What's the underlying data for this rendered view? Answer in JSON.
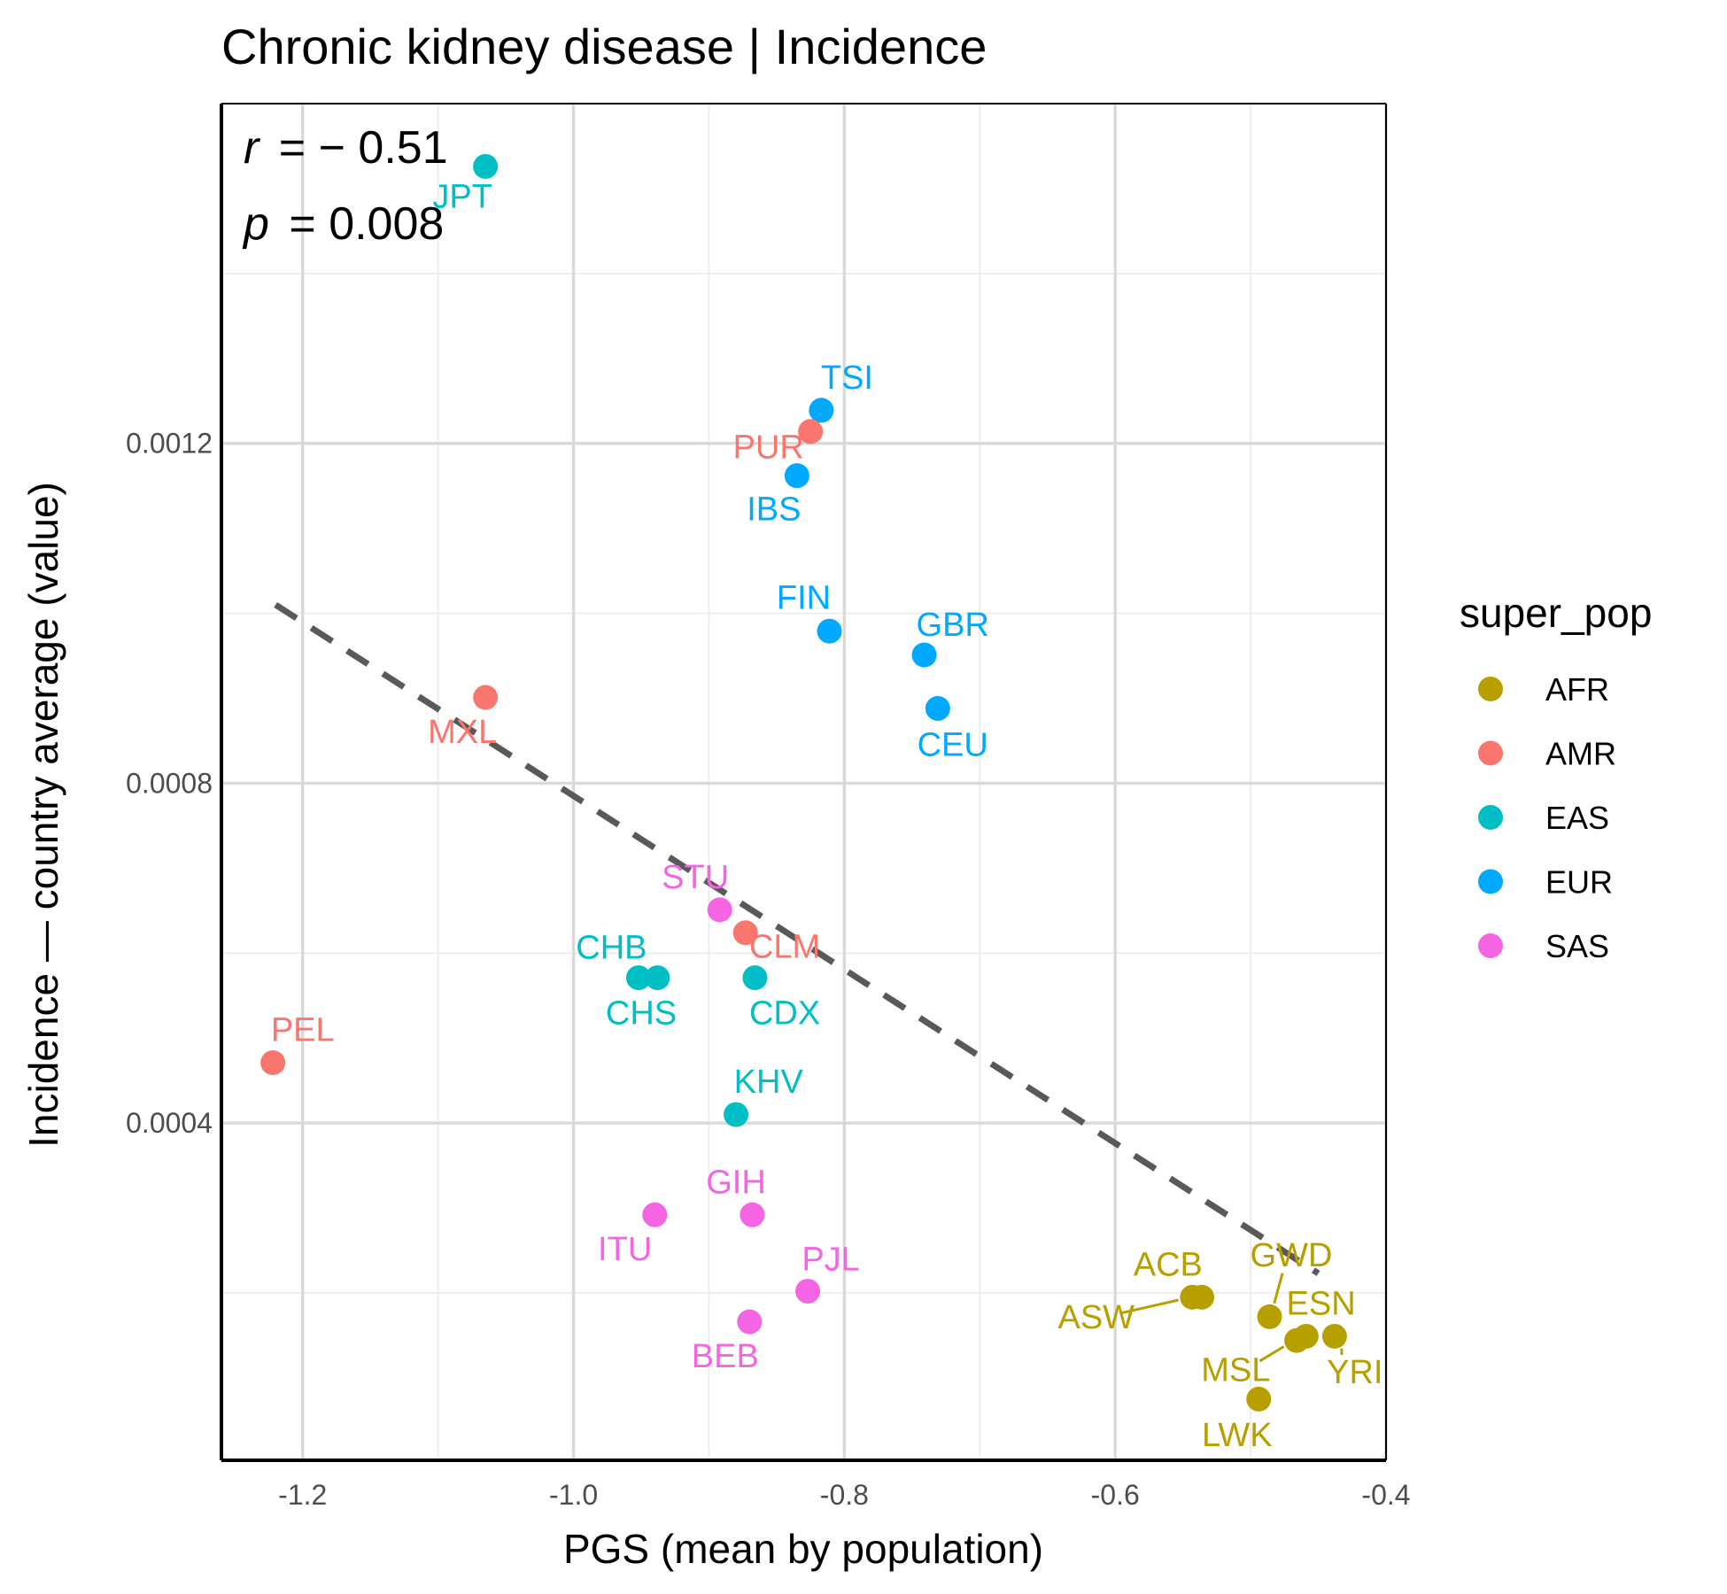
{
  "chart_data": {
    "type": "scatter",
    "title": "Chronic kidney disease | Incidence",
    "xlabel": "PGS (mean by population)",
    "ylabel": "Incidence — country average (value)",
    "xlim": [
      -1.26,
      -0.4
    ],
    "ylim": [
      3e-06,
      0.0016
    ],
    "x_ticks": [
      -1.2,
      -1.0,
      -0.8,
      -0.6,
      -0.4
    ],
    "x_tick_labels": [
      "-1.2",
      "-1.0",
      "-0.8",
      "-0.6",
      "-0.4"
    ],
    "y_ticks": [
      0.0004,
      0.0008,
      0.0012
    ],
    "y_tick_labels": [
      "0.0004",
      "0.0008",
      "0.0012"
    ],
    "grid": true,
    "stats": {
      "r_symbol": "r",
      "r_value": "= − 0.51",
      "p_symbol": "p",
      "p_value": "= 0.008"
    },
    "trend_line": {
      "style": "dashed",
      "color": "#595959",
      "x": [
        -1.22,
        -0.45
      ],
      "y": [
        0.00101,
        0.000223
      ]
    },
    "legend": {
      "title": "super_pop",
      "position": "right",
      "entries": [
        {
          "name": "AFR",
          "color": "#B79F00"
        },
        {
          "name": "AMR",
          "color": "#F8766D"
        },
        {
          "name": "EAS",
          "color": "#00BFC4"
        },
        {
          "name": "EUR",
          "color": "#00A9FF"
        },
        {
          "name": "SAS",
          "color": "#F564E3"
        }
      ]
    },
    "points": [
      {
        "label": "JPT",
        "super_pop": "EAS",
        "x": -1.065,
        "y": 0.001526,
        "lx": -1.082,
        "ly": 0.001491
      },
      {
        "label": "TSI",
        "super_pop": "EUR",
        "x": -0.817,
        "y": 0.001239,
        "lx": -0.798,
        "ly": 0.001278
      },
      {
        "label": "PUR",
        "super_pop": "AMR",
        "x": -0.825,
        "y": 0.001214,
        "lx": -0.856,
        "ly": 0.001196
      },
      {
        "label": "IBS",
        "super_pop": "EUR",
        "x": -0.835,
        "y": 0.001162,
        "lx": -0.852,
        "ly": 0.001123
      },
      {
        "label": "FIN",
        "super_pop": "EUR",
        "x": -0.811,
        "y": 0.000979,
        "lx": -0.83,
        "ly": 0.001019
      },
      {
        "label": "GBR",
        "super_pop": "EUR",
        "x": -0.741,
        "y": 0.000951,
        "lx": -0.72,
        "ly": 0.000987
      },
      {
        "label": "CEU",
        "super_pop": "EUR",
        "x": -0.731,
        "y": 0.000888,
        "lx": -0.72,
        "ly": 0.000846
      },
      {
        "label": "MXL",
        "super_pop": "AMR",
        "x": -1.065,
        "y": 0.000901,
        "lx": -1.082,
        "ly": 0.000861
      },
      {
        "label": "STU",
        "super_pop": "SAS",
        "x": -0.892,
        "y": 0.000651,
        "lx": -0.91,
        "ly": 0.00069
      },
      {
        "label": "CLM",
        "super_pop": "AMR",
        "x": -0.873,
        "y": 0.000624,
        "lx": -0.844,
        "ly": 0.000608
      },
      {
        "label": "CHB",
        "super_pop": "EAS",
        "x": -0.952,
        "y": 0.000571,
        "lx": -0.972,
        "ly": 0.000607
      },
      {
        "label": "CHS",
        "super_pop": "EAS",
        "x": -0.938,
        "y": 0.000571,
        "lx": -0.95,
        "ly": 0.00053
      },
      {
        "label": "CDX",
        "super_pop": "EAS",
        "x": -0.866,
        "y": 0.000571,
        "lx": -0.844,
        "ly": 0.00053
      },
      {
        "label": "PEL",
        "super_pop": "AMR",
        "x": -1.222,
        "y": 0.000471,
        "lx": -1.2,
        "ly": 0.00051
      },
      {
        "label": "KHV",
        "super_pop": "EAS",
        "x": -0.88,
        "y": 0.00041,
        "lx": -0.856,
        "ly": 0.000449
      },
      {
        "label": "GIH",
        "super_pop": "SAS",
        "x": -0.868,
        "y": 0.000292,
        "lx": -0.88,
        "ly": 0.000331
      },
      {
        "label": "ITU",
        "super_pop": "SAS",
        "x": -0.94,
        "y": 0.000292,
        "lx": -0.962,
        "ly": 0.000252
      },
      {
        "label": "PJL",
        "super_pop": "SAS",
        "x": -0.827,
        "y": 0.000202,
        "lx": -0.81,
        "ly": 0.00024
      },
      {
        "label": "BEB",
        "super_pop": "SAS",
        "x": -0.87,
        "y": 0.000166,
        "lx": -0.888,
        "ly": 0.000126
      },
      {
        "label": "ACB",
        "super_pop": "AFR",
        "x": -0.536,
        "y": 0.000195,
        "lx": -0.561,
        "ly": 0.000234
      },
      {
        "label": "ASW",
        "super_pop": "AFR",
        "x": -0.543,
        "y": 0.000195,
        "lx": -0.614,
        "ly": 0.000172,
        "seg": true
      },
      {
        "label": "GWD",
        "super_pop": "AFR",
        "x": -0.486,
        "y": 0.000172,
        "lx": -0.47,
        "ly": 0.000245,
        "seg": true
      },
      {
        "label": "ESN",
        "super_pop": "AFR",
        "x": -0.459,
        "y": 0.000149,
        "lx": -0.448,
        "ly": 0.000188
      },
      {
        "label": "MSL",
        "super_pop": "AFR",
        "x": -0.466,
        "y": 0.000144,
        "lx": -0.511,
        "ly": 0.00011,
        "seg": true
      },
      {
        "label": "YRI",
        "super_pop": "AFR",
        "x": -0.438,
        "y": 0.000149,
        "lx": -0.423,
        "ly": 0.000107,
        "seg": true
      },
      {
        "label": "LWK",
        "super_pop": "AFR",
        "x": -0.494,
        "y": 7.5e-05,
        "lx": -0.51,
        "ly": 3.3e-05
      }
    ]
  }
}
